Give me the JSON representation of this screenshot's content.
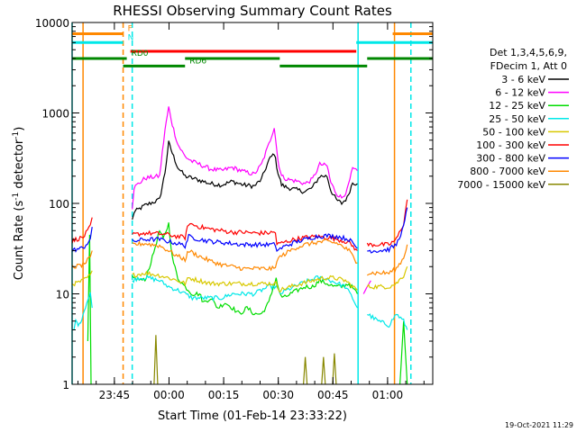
{
  "chart_data": {
    "type": "line",
    "title": "RHESSI Observing Summary Count Rates",
    "xlabel": "Start Time (01-Feb-14 23:33:22)",
    "ylabel_main": "Count Rate (s",
    "ylabel_sup1": "-1",
    "ylabel_mid": " detector",
    "ylabel_sup2": "-1",
    "ylabel_end": ")",
    "footer": "19-Oct-2021 11:29",
    "y_scale": "log",
    "ylim": [
      1,
      10000
    ],
    "xlim_minutes": [
      0,
      99
    ],
    "x_ticks": [
      {
        "label": "23:45",
        "t": 11.6
      },
      {
        "label": "00:00",
        "t": 26.6
      },
      {
        "label": "00:15",
        "t": 41.6
      },
      {
        "label": "00:30",
        "t": 56.6
      },
      {
        "label": "00:45",
        "t": 71.6
      },
      {
        "label": "01:00",
        "t": 86.6
      }
    ],
    "y_ticks": [
      {
        "label": "1",
        "value": 1
      },
      {
        "label": "10",
        "value": 10
      },
      {
        "label": "100",
        "value": 100
      },
      {
        "label": "1000",
        "value": 1000
      },
      {
        "label": "10000",
        "value": 10000
      }
    ],
    "legend_header": [
      "Det 1,3,4,5,6,9,",
      "FDecim 1, Att 0"
    ],
    "legend": [
      {
        "name": "3 - 6 keV",
        "color": "#000000"
      },
      {
        "name": "6 - 12 keV",
        "color": "#ff00ff"
      },
      {
        "name": "12 - 25 keV",
        "color": "#00dd00"
      },
      {
        "name": "25 - 50 keV",
        "color": "#00e8e8"
      },
      {
        "name": "50 - 100 keV",
        "color": "#d8c800"
      },
      {
        "name": "100 - 300 keV",
        "color": "#ff0000"
      },
      {
        "name": "300 - 800 keV",
        "color": "#0000ff"
      },
      {
        "name": "800 - 7000 keV",
        "color": "#ff8800"
      },
      {
        "name": "7000 - 15000 keV",
        "color": "#888800"
      }
    ],
    "flags": [
      {
        "label": "N",
        "color": "#00e8e8",
        "segments": [
          [
            -1,
            14
          ],
          [
            78,
            99
          ]
        ],
        "level": 6000
      },
      {
        "label": "F",
        "color": "#ff8800",
        "segments": [
          [
            -1,
            14
          ],
          [
            88,
            99
          ]
        ],
        "level": 7500
      },
      {
        "label": "",
        "color": "#ff0000",
        "segments": [
          [
            16,
            78
          ]
        ],
        "level": 4800
      },
      {
        "label": "RD0",
        "color": "#008800",
        "segments": [
          [
            -1,
            15
          ],
          [
            31,
            57
          ],
          [
            81,
            99
          ]
        ],
        "level": 4000
      },
      {
        "label": "RD6",
        "color": "#008800",
        "segments": [
          [
            14,
            31
          ],
          [
            57,
            81
          ]
        ],
        "level": 3300
      }
    ],
    "vertical_markers": [
      {
        "t": 0,
        "color": "#00e8e8",
        "dashed": false
      },
      {
        "t": 3,
        "color": "#ff8800",
        "dashed": false
      },
      {
        "t": 14,
        "color": "#ff8800",
        "dashed": true
      },
      {
        "t": 16.5,
        "color": "#00e8e8",
        "dashed": true
      },
      {
        "t": 78.5,
        "color": "#00e8e8",
        "dashed": false
      },
      {
        "t": 88.5,
        "color": "#ff8800",
        "dashed": false
      },
      {
        "t": 93,
        "color": "#00e8e8",
        "dashed": true
      }
    ],
    "series": [
      {
        "name": "3 - 6 keV",
        "color": "#000000",
        "segments": [
          {
            "t": [
              16.5,
              17,
              20,
              24,
              25.5,
              26.5,
              27.5,
              29,
              31,
              33,
              35,
              38,
              41,
              44,
              47,
              50,
              52,
              54,
              55.5,
              56.5,
              57.5,
              59,
              62,
              64,
              66,
              68,
              70,
              71,
              72.5,
              74,
              75.5,
              77,
              78.3
            ],
            "v": [
              65,
              80,
              95,
              110,
              220,
              470,
              360,
              250,
              200,
              190,
              180,
              165,
              160,
              175,
              160,
              155,
              185,
              300,
              360,
              220,
              160,
              150,
              140,
              135,
              150,
              200,
              200,
              140,
              110,
              100,
              115,
              170,
              165
            ]
          }
        ]
      },
      {
        "name": "6 - 12 keV",
        "color": "#ff00ff",
        "segments": [
          {
            "t": [
              16.5,
              17,
              20,
              24,
              25.5,
              26.5,
              27.5,
              29,
              31,
              33,
              35,
              38,
              41,
              44,
              47,
              50,
              52,
              54,
              55.5,
              56.5,
              57.5,
              59,
              62,
              64,
              66,
              68,
              70,
              71,
              72.5,
              74,
              75.5,
              77,
              78.3
            ],
            "v": [
              90,
              150,
              190,
              200,
              650,
              1150,
              750,
              450,
              330,
              290,
              270,
              240,
              230,
              250,
              225,
              210,
              270,
              450,
              700,
              300,
              200,
              185,
              175,
              165,
              185,
              270,
              260,
              170,
              130,
              115,
              140,
              240,
              230
            ]
          },
          {
            "t": [
              80,
              81,
              82
            ],
            "v": [
              10,
              12,
              14
            ]
          }
        ]
      },
      {
        "name": "12 - 25 keV",
        "color": "#00dd00",
        "segments": [
          {
            "t": [
              4.3,
              4.8,
              5.2
            ],
            "v": [
              3,
              45,
              1
            ]
          },
          {
            "t": [
              16.5,
              20,
              22,
              24,
              25,
              26.5,
              27.5,
              29,
              31,
              33,
              35,
              36,
              38,
              40,
              42,
              44,
              46,
              48,
              50,
              52,
              54,
              56,
              57,
              58,
              60,
              62,
              64,
              66,
              68,
              70,
              72,
              74,
              76,
              78.3
            ],
            "v": [
              15,
              14,
              25,
              50,
              40,
              60,
              25,
              15,
              12,
              10,
              10,
              8,
              9,
              7,
              8,
              7,
              6,
              7,
              6,
              6,
              8,
              15,
              10,
              9,
              10,
              11,
              12,
              12,
              14,
              13,
              12,
              12,
              13,
              10
            ]
          },
          {
            "t": [
              90,
              91,
              92
            ],
            "v": [
              1,
              5,
              1
            ]
          }
        ]
      },
      {
        "name": "25 - 50 keV",
        "color": "#00e8e8",
        "segments": [
          {
            "t": [
              0.5,
              1,
              2,
              3,
              4,
              5,
              5.5
            ],
            "v": [
              4,
              5,
              4.5,
              6,
              8,
              10,
              7
            ]
          },
          {
            "t": [
              16.5,
              18,
              21,
              24,
              26.5,
              29,
              31,
              33,
              35,
              38,
              41,
              44,
              47,
              50,
              52,
              54,
              56,
              57,
              59,
              61,
              63,
              65,
              67,
              69,
              71,
              73,
              75,
              77,
              78.3
            ],
            "v": [
              14,
              15,
              15,
              14,
              12,
              11,
              10,
              9,
              9,
              9,
              9,
              10,
              10,
              10,
              11,
              12,
              12,
              10,
              11,
              12,
              13,
              14,
              15,
              15,
              14,
              13,
              12,
              9,
              7
            ]
          },
          {
            "t": [
              81,
              84,
              87,
              89,
              91,
              92
            ],
            "v": [
              6,
              5,
              4.5,
              6,
              5,
              4
            ]
          }
        ]
      },
      {
        "name": "50 - 100 keV",
        "color": "#d8c800",
        "segments": [
          {
            "t": [
              0,
              1,
              3,
              5,
              5.5
            ],
            "v": [
              13,
              13,
              14,
              16,
              18
            ]
          },
          {
            "t": [
              16.5,
              20,
              24,
              26.5,
              29,
              31,
              32,
              35,
              38,
              41,
              44,
              47,
              50,
              53,
              56,
              57,
              60,
              63,
              66,
              69,
              72,
              75,
              78.3
            ],
            "v": [
              16,
              17,
              16,
              15,
              14,
              13,
              15,
              14,
              13,
              13,
              13,
              13,
              13,
              13,
              13,
              11,
              12,
              13,
              14,
              15,
              15,
              14,
              11
            ]
          },
          {
            "t": [
              81,
              84,
              87,
              89,
              91,
              92
            ],
            "v": [
              12,
              12,
              12,
              13,
              16,
              20
            ]
          }
        ]
      },
      {
        "name": "100 - 300 keV",
        "color": "#ff0000",
        "segments": [
          {
            "t": [
              0,
              1,
              3,
              5,
              5.5
            ],
            "v": [
              38,
              40,
              42,
              55,
              70
            ]
          },
          {
            "t": [
              16.5,
              20,
              24,
              26.5,
              29,
              31,
              32,
              35,
              38,
              41,
              44,
              47,
              50,
              53,
              55.8,
              56.2,
              58,
              61,
              64,
              67,
              70,
              73,
              76,
              78.3
            ],
            "v": [
              45,
              47,
              46,
              45,
              43,
              42,
              60,
              55,
              52,
              50,
              48,
              48,
              47,
              47,
              48,
              35,
              37,
              40,
              42,
              43,
              42,
              40,
              37,
              30
            ]
          },
          {
            "t": [
              81,
              84,
              87,
              89,
              91,
              92
            ],
            "v": [
              35,
              35,
              35,
              40,
              60,
              110
            ]
          }
        ]
      },
      {
        "name": "300 - 800 keV",
        "color": "#0000ff",
        "segments": [
          {
            "t": [
              0,
              1,
              3,
              5,
              5.5
            ],
            "v": [
              30,
              31,
              32,
              40,
              55
            ]
          },
          {
            "t": [
              16.5,
              20,
              24,
              26.5,
              29,
              31,
              32,
              35,
              38,
              41,
              44,
              47,
              50,
              53,
              55.8,
              56.2,
              58,
              61,
              64,
              67,
              70,
              73,
              76,
              78.3
            ],
            "v": [
              38,
              40,
              40,
              38,
              36,
              34,
              43,
              40,
              38,
              37,
              36,
              35,
              35,
              35,
              35,
              30,
              33,
              37,
              40,
              43,
              44,
              43,
              40,
              32
            ]
          },
          {
            "t": [
              81,
              84,
              87,
              89,
              91,
              92
            ],
            "v": [
              30,
              30,
              31,
              35,
              55,
              90
            ]
          }
        ]
      },
      {
        "name": "800 - 7000 keV",
        "color": "#ff8800",
        "segments": [
          {
            "t": [
              0,
              1,
              3,
              5,
              5.5
            ],
            "v": [
              20,
              20,
              21,
              25,
              30
            ]
          },
          {
            "t": [
              16.5,
              20,
              24,
              26.5,
              29,
              31,
              32,
              35,
              38,
              41,
              44,
              47,
              50,
              53,
              55.8,
              56.2,
              58,
              61,
              64,
              67,
              70,
              73,
              76,
              78.3
            ],
            "v": [
              35,
              36,
              34,
              30,
              26,
              24,
              30,
              26,
              23,
              21,
              20,
              19,
              19,
              19,
              19,
              24,
              27,
              32,
              35,
              37,
              38,
              36,
              30,
              22
            ]
          },
          {
            "t": [
              81,
              84,
              87,
              89,
              91,
              92
            ],
            "v": [
              17,
              17,
              17,
              19,
              25,
              35
            ]
          }
        ]
      },
      {
        "name": "7000 - 15000 keV",
        "color": "#888800",
        "segments": [
          {
            "t": [
              22.5,
              23,
              23.5
            ],
            "v": [
              1,
              3.5,
              1
            ]
          },
          {
            "t": [
              63.5,
              64,
              64.5
            ],
            "v": [
              1,
              2,
              1
            ]
          },
          {
            "t": [
              68.5,
              69,
              69.5
            ],
            "v": [
              1,
              2,
              1
            ]
          },
          {
            "t": [
              71.5,
              72,
              72.5
            ],
            "v": [
              1,
              2.2,
              1
            ]
          }
        ]
      }
    ]
  }
}
